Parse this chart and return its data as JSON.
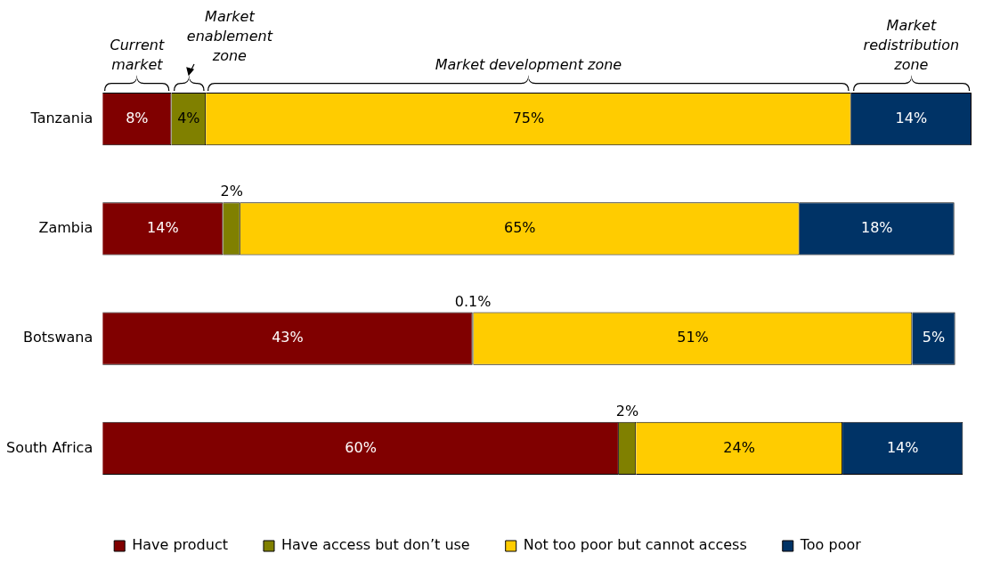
{
  "chart_data": {
    "type": "bar",
    "orientation": "horizontal",
    "stacked": true,
    "legend": "bottom",
    "categories": [
      "Tanzania",
      "Zambia",
      "Botswana",
      "South Africa"
    ],
    "annotations": [
      "Current market",
      "Market enablement zone",
      "Market development zone",
      "Market redistribution zone"
    ],
    "series": [
      {
        "name": "Have product",
        "color": "#800000",
        "values": [
          8,
          14,
          43,
          60
        ],
        "value_labels": [
          "8%",
          "14%",
          "43%",
          "60%"
        ]
      },
      {
        "name": "Have access but don’t use",
        "color": "#808000",
        "values": [
          4,
          2,
          0.1,
          2
        ],
        "value_labels": [
          "4%",
          "2%",
          "0.1%",
          "2%"
        ]
      },
      {
        "name": "Not too poor but cannot access",
        "color": "#ffcc00",
        "values": [
          75,
          65,
          51,
          24
        ],
        "value_labels": [
          "75%",
          "65%",
          "51%",
          "24%"
        ]
      },
      {
        "name": "Too poor",
        "color": "#003366",
        "values": [
          14,
          18,
          5,
          14
        ],
        "value_labels": [
          "14%",
          "18%",
          "5%",
          "14%"
        ]
      }
    ]
  }
}
